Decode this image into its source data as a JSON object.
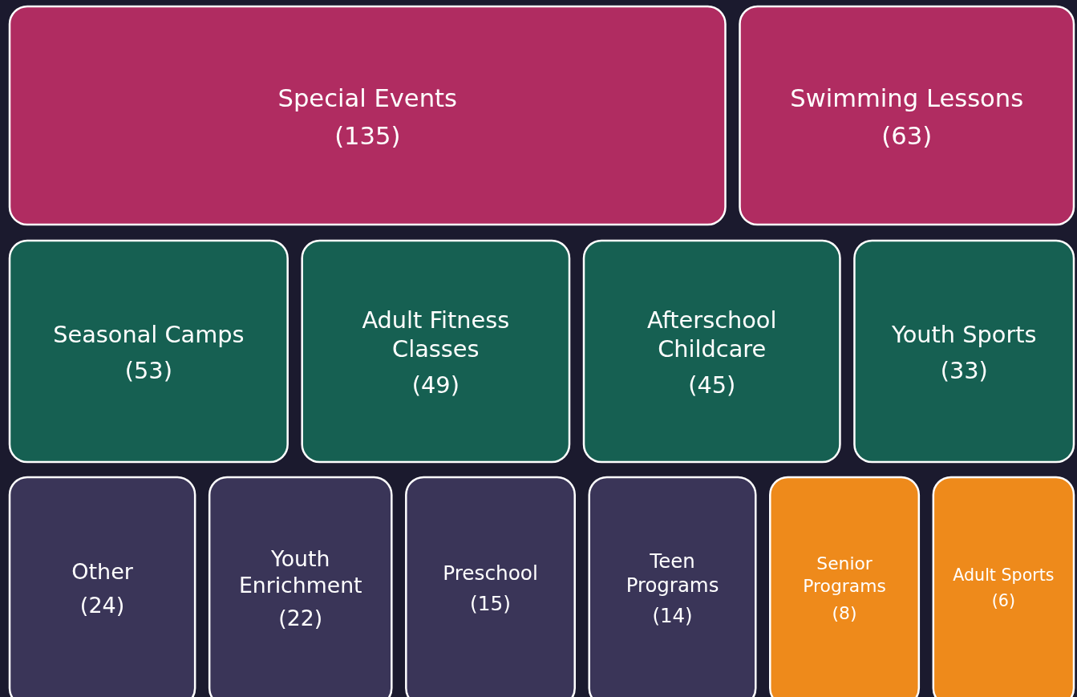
{
  "chart_data": {
    "type": "other",
    "categories": [
      "Special Events",
      "Swimming Lessons",
      "Seasonal Camps",
      "Adult Fitness Classes",
      "Afterschool Childcare",
      "Youth Sports",
      "Other",
      "Youth Enrichment",
      "Preschool",
      "Teen Programs",
      "Senior Programs",
      "Adult Sports"
    ],
    "values": [
      135,
      63,
      53,
      49,
      45,
      33,
      24,
      22,
      15,
      14,
      8,
      6
    ],
    "value_labels": [
      "(135)",
      "(63)",
      "(53)",
      "(49)",
      "(45)",
      "(33)",
      "(24)",
      "(22)",
      "(15)",
      "(14)",
      "(8)",
      "(6)"
    ],
    "colors": [
      "#b02c61",
      "#b02c61",
      "#166052",
      "#166052",
      "#166052",
      "#166052",
      "#3a3558",
      "#3a3558",
      "#3a3558",
      "#3a3558",
      "#ee8a1b",
      "#ee8a1b"
    ]
  }
}
